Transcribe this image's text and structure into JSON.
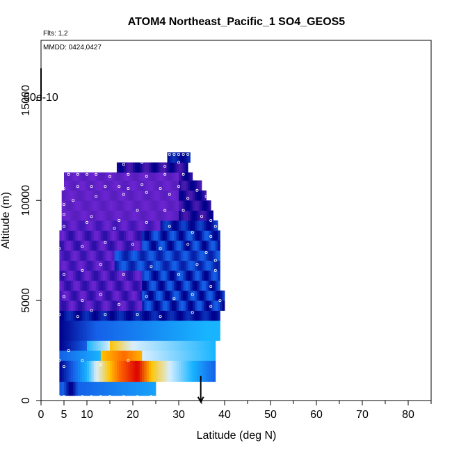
{
  "chart_data": {
    "type": "heatmap",
    "title": "ATOM4 Northeast_Pacific_1 SO4_GEOS5",
    "annotations": {
      "flights": "Flts: 1,2",
      "dates": "MMDD: 0424,0427"
    },
    "xlabel": "Latitude (deg N)",
    "ylabel": "Altitude (m)",
    "xlim": [
      0,
      85
    ],
    "ylim": [
      0,
      18000
    ],
    "xticks": [
      0,
      5,
      10,
      20,
      30,
      40,
      50,
      60,
      70,
      80
    ],
    "xminor": [
      15,
      25,
      35,
      45,
      55,
      65,
      75,
      85
    ],
    "yticks": [
      0,
      5000,
      10000,
      15000
    ],
    "colorbar_max_label": "50e-10",
    "marker": {
      "x": 34.8,
      "y": 600
    },
    "colors": {
      "low": "#00008b",
      "purple": "#6a24d0",
      "blue": "#1560e8",
      "cyan": "#18b4ff",
      "pale": "#d8eeff",
      "yellow": "#ffc400",
      "orange": "#ff6a00",
      "red": "#dd0000"
    },
    "rows": [
      {
        "alt": [
          250,
          950
        ],
        "xmin": 4,
        "xmax": 25,
        "type": "blue_low"
      },
      {
        "alt": [
          950,
          1500
        ],
        "xmin": 4,
        "xmax": 38,
        "type": "hot"
      },
      {
        "alt": [
          1500,
          2000
        ],
        "xmin": 4,
        "xmax": 38,
        "type": "hot"
      },
      {
        "alt": [
          2000,
          2500
        ],
        "xmin": 4,
        "xmax": 38,
        "type": "hot2"
      },
      {
        "alt": [
          2500,
          3000
        ],
        "xmin": 4,
        "xmax": 38,
        "type": "warm"
      },
      {
        "alt": [
          3000,
          3500
        ],
        "xmin": 4,
        "xmax": 39,
        "type": "bluecyan"
      },
      {
        "alt": [
          3500,
          4000
        ],
        "xmin": 4,
        "xmax": 39,
        "type": "bluecyan"
      },
      {
        "alt": [
          4000,
          4500
        ],
        "xmin": 4,
        "xmax": 39,
        "type": "darkblue"
      },
      {
        "alt": [
          4500,
          5000
        ],
        "xmin": 4,
        "xmax": 40,
        "type": "mixed"
      },
      {
        "alt": [
          5000,
          5500
        ],
        "xmin": 4,
        "xmax": 40,
        "type": "mixed"
      },
      {
        "alt": [
          5500,
          6000
        ],
        "xmin": 4,
        "xmax": 39,
        "type": "mixed"
      },
      {
        "alt": [
          6000,
          6500
        ],
        "xmin": 4,
        "xmax": 39,
        "type": "mixed"
      },
      {
        "alt": [
          6500,
          7000
        ],
        "xmin": 4,
        "xmax": 39,
        "type": "mixedblue"
      },
      {
        "alt": [
          7000,
          7500
        ],
        "xmin": 4,
        "xmax": 39,
        "type": "mixedblue"
      },
      {
        "alt": [
          7500,
          8000
        ],
        "xmin": 4,
        "xmax": 39,
        "type": "mixed"
      },
      {
        "alt": [
          8000,
          8500
        ],
        "xmin": 4,
        "xmax": 39,
        "type": "mixed"
      },
      {
        "alt": [
          8500,
          9000
        ],
        "xmin": 4.5,
        "xmax": 38.5,
        "type": "purpleblue"
      },
      {
        "alt": [
          9000,
          9500
        ],
        "xmin": 4.5,
        "xmax": 37.5,
        "type": "purple"
      },
      {
        "alt": [
          9500,
          10000
        ],
        "xmin": 4.5,
        "xmax": 37,
        "type": "purple"
      },
      {
        "alt": [
          10000,
          10500
        ],
        "xmin": 4.5,
        "xmax": 36,
        "type": "purple"
      },
      {
        "alt": [
          10500,
          11000
        ],
        "xmin": 5,
        "xmax": 35,
        "type": "purple"
      },
      {
        "alt": [
          11000,
          11400
        ],
        "xmin": 5,
        "xmax": 33,
        "type": "purple"
      },
      {
        "alt": [
          11400,
          11900
        ],
        "xmin": 16.5,
        "xmax": 32,
        "type": "purpledark"
      },
      {
        "alt": [
          11900,
          12400
        ],
        "xmin": 27.5,
        "xmax": 32.5,
        "type": "darkblue"
      }
    ],
    "points": [
      [
        4,
        200
      ],
      [
        5,
        200
      ],
      [
        9,
        200
      ],
      [
        11,
        200
      ],
      [
        13,
        200
      ],
      [
        15,
        200
      ],
      [
        18,
        200
      ],
      [
        21,
        200
      ],
      [
        24,
        200
      ],
      [
        4,
        2000
      ],
      [
        5,
        1700
      ],
      [
        6,
        2500
      ],
      [
        9,
        2000
      ],
      [
        13,
        1800
      ],
      [
        19,
        2000
      ],
      [
        4,
        4300
      ],
      [
        8,
        4200
      ],
      [
        11,
        4500
      ],
      [
        14,
        4300
      ],
      [
        21,
        4300
      ],
      [
        26,
        4200
      ],
      [
        33,
        4400
      ],
      [
        37,
        4700
      ],
      [
        39,
        5000
      ],
      [
        5,
        5200
      ],
      [
        9,
        5000
      ],
      [
        13,
        5300
      ],
      [
        17,
        4800
      ],
      [
        23,
        5200
      ],
      [
        29,
        5100
      ],
      [
        33,
        5300
      ],
      [
        37,
        5700
      ],
      [
        5,
        6300
      ],
      [
        9,
        6500
      ],
      [
        13,
        6800
      ],
      [
        18,
        6300
      ],
      [
        24,
        6700
      ],
      [
        30,
        6300
      ],
      [
        34,
        6800
      ],
      [
        38,
        6500
      ],
      [
        4,
        7600
      ],
      [
        9,
        7700
      ],
      [
        14,
        7900
      ],
      [
        20,
        7800
      ],
      [
        26,
        7600
      ],
      [
        32,
        7800
      ],
      [
        36,
        7400
      ],
      [
        38,
        7000
      ],
      [
        5,
        8700
      ],
      [
        10,
        8900
      ],
      [
        16,
        8600
      ],
      [
        23,
        8900
      ],
      [
        28,
        8700
      ],
      [
        33,
        8400
      ],
      [
        37,
        8200
      ],
      [
        38,
        8700
      ],
      [
        5,
        9300
      ],
      [
        11,
        9200
      ],
      [
        17,
        9000
      ],
      [
        21,
        9500
      ],
      [
        27,
        9500
      ],
      [
        31,
        9500
      ],
      [
        35,
        9200
      ],
      [
        37,
        9000
      ],
      [
        5,
        9800
      ],
      [
        7,
        10000
      ],
      [
        12,
        10200
      ],
      [
        18,
        10300
      ],
      [
        23,
        10400
      ],
      [
        28,
        10300
      ],
      [
        32,
        10100
      ],
      [
        36,
        10200
      ],
      [
        5,
        10600
      ],
      [
        8,
        10700
      ],
      [
        11,
        10700
      ],
      [
        14,
        10700
      ],
      [
        17,
        10700
      ],
      [
        19,
        10600
      ],
      [
        22,
        10800
      ],
      [
        26,
        10600
      ],
      [
        30,
        10700
      ],
      [
        34,
        10500
      ],
      [
        6,
        11300
      ],
      [
        8,
        11300
      ],
      [
        10,
        11300
      ],
      [
        12,
        11300
      ],
      [
        15,
        11200
      ],
      [
        19,
        11300
      ],
      [
        23,
        11200
      ],
      [
        27,
        11300
      ],
      [
        31,
        11300
      ],
      [
        18,
        11800
      ],
      [
        22,
        11900
      ],
      [
        27,
        11700
      ],
      [
        30,
        11900
      ],
      [
        28,
        12300
      ],
      [
        29,
        12300
      ],
      [
        30,
        12300
      ],
      [
        31,
        12300
      ],
      [
        32,
        12300
      ]
    ]
  }
}
